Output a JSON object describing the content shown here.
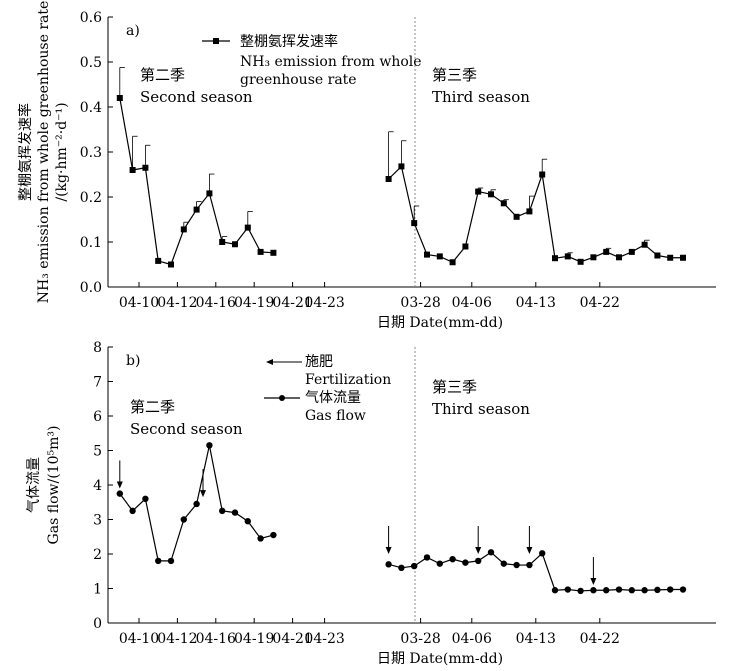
{
  "chart_data": [
    {
      "type": "line",
      "panel_label": "a)",
      "ylabel_cn": "整棚氨挥发速率",
      "ylabel_en": "NH₃ emission from whole greenhouse rate",
      "yunit": "/(kg·hm⁻²·d⁻¹)",
      "xlabel": "日期 Date(mm-dd)",
      "ylim": [
        0,
        0.6
      ],
      "yticks": [
        "0.0",
        "0.1",
        "0.2",
        "0.3",
        "0.4",
        "0.5",
        "0.6"
      ],
      "xtick_labels": [
        {
          "label": "04-10",
          "x": 2.5
        },
        {
          "label": "04-12",
          "x": 5.5
        },
        {
          "label": "04-16",
          "x": 8.5
        },
        {
          "label": "04-19",
          "x": 11.5
        },
        {
          "label": "04-21",
          "x": 14.5
        },
        {
          "label": "04-23",
          "x": 17.0
        },
        {
          "label": "03-28",
          "x": 24.5
        },
        {
          "label": "04-06",
          "x": 28.5
        },
        {
          "label": "04-13",
          "x": 33.5
        },
        {
          "label": "04-22",
          "x": 38.5
        }
      ],
      "season_labels": [
        {
          "cn": "第二季",
          "en": "Second season"
        },
        {
          "cn": "第三季",
          "en": "Third season"
        }
      ],
      "legend": {
        "cn": "整棚氨挥发速率",
        "en_line1": "NH₃ emission from whole",
        "en_line2": "greenhouse rate"
      },
      "series": [
        {
          "name": "second-season",
          "x": [
            1,
            2,
            3,
            4,
            5,
            6,
            7,
            8,
            9,
            10,
            11,
            12,
            13
          ],
          "values": [
            0.42,
            0.26,
            0.265,
            0.058,
            0.05,
            0.128,
            0.172,
            0.208,
            0.1,
            0.095,
            0.132,
            0.078,
            0.076
          ],
          "errors": [
            0.068,
            0.075,
            0.05,
            0.0,
            0.0,
            0.016,
            0.018,
            0.043,
            0.012,
            0.0,
            0.036,
            0.0,
            0.0
          ]
        },
        {
          "name": "third-season",
          "x": [
            22,
            23,
            24,
            25,
            26,
            27,
            28,
            29,
            30,
            31,
            32,
            33,
            34,
            35,
            36,
            37,
            38,
            39,
            40,
            41,
            42,
            43,
            44,
            45
          ],
          "values": [
            0.24,
            0.268,
            0.142,
            0.072,
            0.068,
            0.055,
            0.09,
            0.212,
            0.206,
            0.186,
            0.156,
            0.168,
            0.25,
            0.064,
            0.068,
            0.056,
            0.066,
            0.078,
            0.066,
            0.078,
            0.094,
            0.07,
            0.065,
            0.065
          ],
          "errors": [
            0.105,
            0.057,
            0.038,
            0.0,
            0.0,
            0.0,
            0.0,
            0.008,
            0.01,
            0.008,
            0.0,
            0.034,
            0.034,
            0.0,
            0.008,
            0.0,
            0.0,
            0.008,
            0.0,
            0.0,
            0.01,
            0.0,
            0.0,
            0.0
          ]
        }
      ]
    },
    {
      "type": "line",
      "panel_label": "b)",
      "ylabel_cn": "气体流量",
      "ylabel_en": "Gas flow/(10⁵m³)",
      "xlabel": "日期 Date(mm-dd)",
      "ylim": [
        0,
        8
      ],
      "yticks": [
        "0",
        "1",
        "2",
        "3",
        "4",
        "5",
        "6",
        "7",
        "8"
      ],
      "xtick_labels": [
        {
          "label": "04-10",
          "x": 2.5
        },
        {
          "label": "04-12",
          "x": 5.5
        },
        {
          "label": "04-16",
          "x": 8.5
        },
        {
          "label": "04-19",
          "x": 11.5
        },
        {
          "label": "04-21",
          "x": 14.5
        },
        {
          "label": "04-23",
          "x": 17.0
        },
        {
          "label": "03-28",
          "x": 24.5
        },
        {
          "label": "04-06",
          "x": 28.5
        },
        {
          "label": "04-13",
          "x": 33.5
        },
        {
          "label": "04-22",
          "x": 38.5
        }
      ],
      "season_labels": [
        {
          "cn": "第二季",
          "en": "Second season"
        },
        {
          "cn": "第三季",
          "en": "Third season"
        }
      ],
      "legend": {
        "fert_cn": "施肥",
        "fert_en": "Fertilization",
        "gas_cn": "气体流量",
        "gas_en": "Gas flow"
      },
      "fertilization_x": [
        1,
        7.5,
        22,
        29,
        33,
        38
      ],
      "series": [
        {
          "name": "second-season",
          "x": [
            1,
            2,
            3,
            4,
            5,
            6,
            7,
            8,
            9,
            10,
            11,
            12,
            13
          ],
          "values": [
            3.75,
            3.25,
            3.6,
            1.8,
            1.8,
            3.0,
            3.45,
            5.15,
            3.25,
            3.2,
            2.95,
            2.45,
            2.55
          ]
        },
        {
          "name": "third-season",
          "x": [
            22,
            23,
            24,
            25,
            26,
            27,
            28,
            29,
            30,
            31,
            32,
            33,
            34,
            35,
            36,
            37,
            38,
            39,
            40,
            41,
            42,
            43,
            44,
            45
          ],
          "values": [
            1.7,
            1.6,
            1.65,
            1.9,
            1.72,
            1.85,
            1.75,
            1.8,
            2.05,
            1.72,
            1.68,
            1.68,
            2.02,
            0.95,
            0.97,
            0.93,
            0.95,
            0.95,
            0.97,
            0.95,
            0.95,
            0.96,
            0.97,
            0.97
          ]
        }
      ]
    }
  ]
}
